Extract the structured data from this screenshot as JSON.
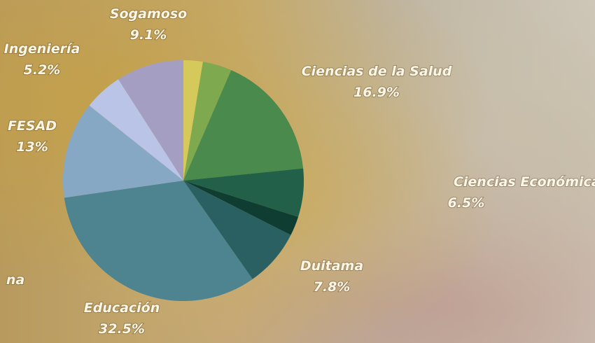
{
  "chart_data": {
    "type": "pie",
    "categories": [
      null,
      null,
      "Ciencias de la Salud",
      "Ciencias Económicas y Administrativa",
      null,
      "Duitama",
      "Educación",
      "FESAD",
      "Ingeniería",
      "Sogamoso"
    ],
    "values": [
      2.6,
      3.9,
      16.9,
      6.5,
      2.6,
      7.8,
      32.5,
      13,
      5.2,
      9.1
    ],
    "value_labels": [
      null,
      null,
      "16.9%",
      "6.5%",
      null,
      "7.8%",
      "32.5%",
      "13%",
      "5.2%",
      "9.1%"
    ],
    "colors": [
      "#d4c95a",
      "#7fa94e",
      "#4a8a4c",
      "#22604a",
      "#0f3d32",
      "#2a6062",
      "#4e8390",
      "#87a8c4",
      "#b9c4e6",
      "#a49fc2"
    ],
    "clipped_label": "na"
  }
}
